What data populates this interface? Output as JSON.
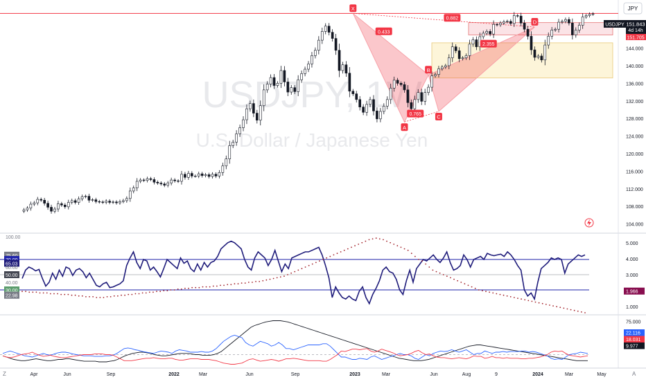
{
  "chart_data": {
    "type": "candlestick",
    "symbol_watermark": "USDJPY, 1W",
    "description_watermark": "U.S. Dollar / Japanese Yen",
    "currency": "JPY",
    "last_price": {
      "symbol": "USDJPY",
      "value": "151.843",
      "countdown": "4d 14h",
      "sub_value": "151.705"
    },
    "price_axis": {
      "min": 103,
      "max": 154,
      "ticks": [
        "148.000",
        "144.000",
        "140.000",
        "136.000",
        "132.000",
        "128.000",
        "124.000",
        "120.000",
        "116.000",
        "112.000",
        "108.000",
        "104.000"
      ]
    },
    "time_axis": {
      "labels": [
        "Apr",
        "Jun",
        "Sep",
        "2022",
        "Mar",
        "Jun",
        "Sep",
        "2023",
        "Mar",
        "Jun",
        "Aug",
        "9",
        "2024",
        "Mar",
        "May"
      ]
    },
    "weekly_closes": [
      107.2,
      107.6,
      108.5,
      108.8,
      109.6,
      109.4,
      108.7,
      107.8,
      106.9,
      107.4,
      108.6,
      108.3,
      107.9,
      108.9,
      109.3,
      108.9,
      109.7,
      110.2,
      110.3,
      109.4,
      109.5,
      109.1,
      109.0,
      108.9,
      109.2,
      108.9,
      109.0,
      108.8,
      109.1,
      109.3,
      109.8,
      111.5,
      112.2,
      113.7,
      114.0,
      113.9,
      114.3,
      114.1,
      113.5,
      113.3,
      113.1,
      112.8,
      113.3,
      114.0,
      113.8,
      113.7,
      115.3,
      114.6,
      115.5,
      114.9,
      114.9,
      115.4,
      115.0,
      115.2,
      114.8,
      115.3,
      114.9,
      115.7,
      117.2,
      118.8,
      121.8,
      122.6,
      124.5,
      125.9,
      127.7,
      130.2,
      131.4,
      129.2,
      127.6,
      130.9,
      134.5,
      135.8,
      137.3,
      135.5,
      136.0,
      138.9,
      136.3,
      134.0,
      135.0,
      134.1,
      136.8,
      138.2,
      139.2,
      140.4,
      142.3,
      143.5,
      145.8,
      147.8,
      149.0,
      147.6,
      146.2,
      143.5,
      138.9,
      140.2,
      138.3,
      134.2,
      133.6,
      132.3,
      130.6,
      129.4,
      131.2,
      132.3,
      129.7,
      127.9,
      129.6,
      130.8,
      132.3,
      134.9,
      136.7,
      136.0,
      135.7,
      134.5,
      131.6,
      130.2,
      132.3,
      133.9,
      131.9,
      133.9,
      135.1,
      137.7,
      138.0,
      139.3,
      139.7,
      140.0,
      141.8,
      144.3,
      143.4,
      141.6,
      141.8,
      142.3,
      144.9,
      145.9,
      144.3,
      146.6,
      147.4,
      147.8,
      147.2,
      149.4,
      149.3,
      149.7,
      150.0,
      150.1,
      149.6,
      151.4,
      151.3,
      149.7,
      148.3,
      146.7,
      143.6,
      141.9,
      142.2,
      141.3,
      144.7,
      146.7,
      148.1,
      148.3,
      149.9,
      150.1,
      150.5,
      149.7,
      147.0,
      148.1,
      149.2,
      151.1,
      151.4,
      151.7,
      151.8
    ],
    "harmonic_pattern": {
      "points": [
        {
          "label": "X",
          "value": 151.9
        },
        {
          "label": "A",
          "value": 127.2
        },
        {
          "label": "B",
          "value": 137.9
        },
        {
          "label": "C",
          "value": 129.6
        },
        {
          "label": "D",
          "value": 148.8
        }
      ],
      "ratios": [
        "0.433",
        "0.765",
        "2.355",
        "0.882"
      ]
    },
    "levels": {
      "resistance": 151.9
    },
    "zones": [
      {
        "from": 147.0,
        "to": 149.8
      },
      {
        "from": 137.2,
        "to": 145.2
      }
    ],
    "rsi_panel": {
      "levels": [
        "75.60",
        "70.00",
        "65.03",
        "50.00",
        "30.00",
        "22.98"
      ],
      "axis_ticks": [
        "100.00",
        "60.00",
        "40.00"
      ],
      "right_ticks": [
        "5.000",
        "4.000",
        "3.000",
        "2.000",
        "1.000"
      ],
      "right_value": "1.966",
      "rsi": [
        45,
        56,
        60,
        58,
        55,
        57,
        45,
        35,
        40,
        52,
        44,
        56,
        48,
        60,
        58,
        49,
        56,
        58,
        54,
        46,
        52,
        44,
        36,
        34,
        38,
        40,
        33,
        34,
        36,
        38,
        42,
        62,
        72,
        80,
        66,
        58,
        70,
        68,
        56,
        60,
        54,
        47,
        58,
        70,
        66,
        62,
        58,
        72,
        65,
        68,
        58,
        54,
        64,
        56,
        66,
        60,
        66,
        68,
        74,
        84,
        88,
        92,
        94,
        92,
        88,
        84,
        70,
        60,
        56,
        72,
        80,
        76,
        72,
        62,
        70,
        82,
        68,
        54,
        64,
        58,
        72,
        74,
        76,
        78,
        80,
        80,
        82,
        84,
        86,
        76,
        62,
        46,
        20,
        34,
        26,
        20,
        18,
        22,
        18,
        16,
        28,
        34,
        20,
        12,
        24,
        32,
        42,
        56,
        60,
        54,
        52,
        44,
        30,
        24,
        42,
        56,
        40,
        58,
        64,
        70,
        68,
        72,
        76,
        70,
        66,
        72,
        80,
        66,
        56,
        58,
        62,
        76,
        70,
        60,
        70,
        72,
        74,
        70,
        78,
        76,
        75,
        76,
        77,
        74,
        80,
        76,
        70,
        62,
        56,
        30,
        22,
        26,
        18,
        40,
        58,
        62,
        66,
        72,
        70,
        72,
        70,
        52,
        64,
        68,
        72,
        76,
        74,
        76
      ],
      "dots": [
        28,
        28,
        27,
        27,
        27,
        26,
        26,
        26,
        25,
        25,
        25,
        24,
        24,
        24,
        23,
        23,
        22,
        22,
        21,
        21,
        21,
        20,
        20,
        20,
        21,
        21,
        22,
        22,
        23,
        23,
        24,
        24,
        25,
        25,
        26,
        26,
        27,
        27,
        28,
        28,
        29,
        29,
        30,
        30,
        31,
        31,
        32,
        32,
        33,
        33,
        33,
        34,
        34,
        34,
        35,
        35,
        36,
        36,
        37,
        37,
        38,
        38,
        39,
        39,
        40,
        40,
        41,
        41,
        42,
        43,
        44,
        45,
        46,
        47,
        48,
        50,
        52,
        54,
        56,
        58,
        60,
        62,
        64,
        66,
        68,
        70,
        72,
        74,
        76,
        78,
        80,
        82,
        84,
        86,
        88,
        90,
        92,
        94,
        96,
        97,
        98,
        97,
        96,
        94,
        92,
        90,
        88,
        86,
        84,
        82,
        78,
        74,
        70,
        68,
        64,
        60,
        56,
        54,
        52,
        50,
        48,
        46,
        44,
        42,
        40,
        38,
        36,
        34,
        32,
        30,
        29,
        28,
        27,
        26,
        25,
        24,
        23,
        22,
        21,
        20,
        19,
        18,
        17,
        16,
        15,
        14,
        13,
        12,
        11,
        10,
        9,
        8,
        7,
        6,
        5,
        4,
        3,
        2,
        1,
        0
      ]
    },
    "dmi_panel": {
      "right_ticks": [
        "75.000",
        "50.000"
      ],
      "values": {
        "adx_label": "9.977",
        "plus_di": "22.116",
        "minus_di": "18.031"
      },
      "adx": [
        18,
        16,
        14,
        12,
        11,
        10,
        10,
        11,
        12,
        13,
        12,
        11,
        10,
        10,
        11,
        12,
        12,
        13,
        13,
        12,
        11,
        10,
        9,
        9,
        9,
        9,
        8,
        8,
        8,
        9,
        10,
        12,
        15,
        18,
        20,
        22,
        23,
        24,
        24,
        23,
        22,
        20,
        19,
        18,
        18,
        19,
        20,
        21,
        22,
        22,
        22,
        21,
        20,
        20,
        19,
        19,
        19,
        20,
        22,
        25,
        30,
        35,
        40,
        45,
        50,
        55,
        60,
        65,
        68,
        70,
        72,
        74,
        75,
        76,
        76,
        76,
        75,
        74,
        72,
        70,
        68,
        66,
        64,
        62,
        60,
        58,
        56,
        54,
        52,
        50,
        48,
        46,
        44,
        42,
        40,
        38,
        36,
        34,
        32,
        30,
        28,
        26,
        24,
        22,
        20,
        18,
        16,
        14,
        13,
        12,
        11,
        10,
        10,
        10,
        11,
        12,
        14,
        16,
        18,
        20,
        22,
        24,
        26,
        28,
        30,
        32,
        34,
        35,
        36,
        36,
        35,
        34,
        33,
        32,
        31,
        30,
        29,
        28,
        27,
        26,
        25,
        24,
        23,
        22,
        21,
        20,
        19,
        18,
        17,
        16,
        15,
        14,
        13,
        12,
        11,
        10,
        10,
        10,
        10
      ],
      "plus_di": [
        22,
        24,
        26,
        24,
        22,
        20,
        18,
        17,
        16,
        18,
        20,
        22,
        20,
        19,
        21,
        23,
        24,
        24,
        23,
        21,
        20,
        19,
        18,
        18,
        18,
        17,
        17,
        17,
        18,
        18,
        19,
        22,
        26,
        30,
        31,
        30,
        28,
        27,
        25,
        24,
        23,
        22,
        24,
        26,
        25,
        24,
        22,
        26,
        28,
        27,
        26,
        24,
        24,
        24,
        25,
        24,
        24,
        26,
        30,
        36,
        42,
        46,
        50,
        52,
        50,
        48,
        40,
        36,
        34,
        38,
        42,
        40,
        38,
        34,
        36,
        40,
        36,
        30,
        30,
        28,
        30,
        32,
        34,
        36,
        36,
        36,
        36,
        38,
        38,
        34,
        28,
        22,
        16,
        16,
        14,
        12,
        12,
        14,
        13,
        12,
        16,
        18,
        15,
        12,
        14,
        16,
        18,
        20,
        22,
        20,
        20,
        18,
        14,
        12,
        16,
        20,
        18,
        22,
        24,
        26,
        25,
        26,
        28,
        26,
        24,
        26,
        28,
        24,
        20,
        22,
        22,
        26,
        24,
        22,
        24,
        24,
        25,
        24,
        25,
        25,
        25,
        26,
        26,
        24,
        25,
        24,
        22,
        20,
        18,
        14,
        12,
        13,
        12,
        16,
        20,
        21,
        22,
        24,
        23,
        22
      ],
      "minus_di": [
        18,
        16,
        15,
        16,
        18,
        20,
        21,
        22,
        24,
        21,
        19,
        17,
        18,
        19,
        17,
        16,
        15,
        15,
        16,
        17,
        18,
        19,
        20,
        20,
        20,
        21,
        21,
        21,
        20,
        20,
        19,
        16,
        13,
        10,
        10,
        10,
        11,
        12,
        13,
        14,
        14,
        15,
        14,
        13,
        13,
        14,
        14,
        12,
        11,
        11,
        12,
        13,
        13,
        13,
        12,
        12,
        12,
        11,
        10,
        8,
        6,
        5,
        4,
        4,
        5,
        6,
        9,
        12,
        13,
        11,
        9,
        10,
        11,
        12,
        11,
        9,
        11,
        13,
        13,
        14,
        13,
        12,
        11,
        10,
        10,
        10,
        10,
        9,
        9,
        12,
        16,
        20,
        26,
        25,
        27,
        29,
        29,
        28,
        29,
        30,
        26,
        24,
        26,
        29,
        27,
        25,
        23,
        20,
        18,
        19,
        20,
        22,
        25,
        27,
        23,
        20,
        21,
        18,
        16,
        15,
        15,
        14,
        13,
        14,
        15,
        14,
        13,
        15,
        18,
        17,
        17,
        14,
        15,
        17,
        15,
        15,
        14,
        15,
        14,
        14,
        14,
        13,
        13,
        14,
        14,
        15,
        16,
        18,
        20,
        24,
        26,
        25,
        26,
        22,
        19,
        18,
        17,
        16,
        17,
        18
      ]
    }
  }
}
